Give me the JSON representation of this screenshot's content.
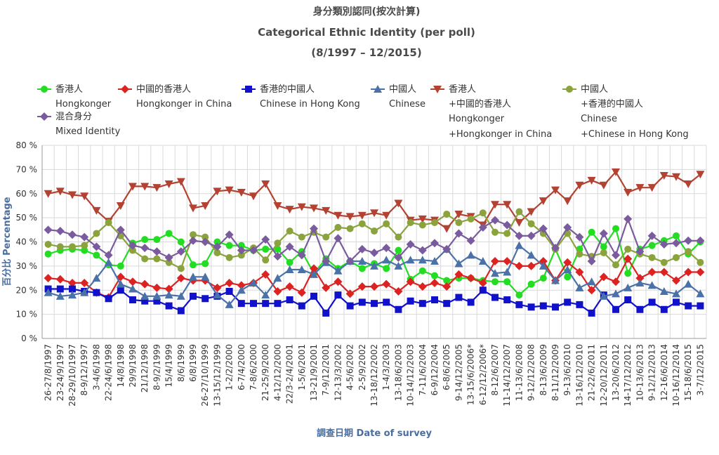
{
  "chart_data": {
    "type": "line",
    "title": "身分類別認同(按次計算)",
    "subtitle": "Categorical Ethnic Identity (per poll)",
    "period": "(8/1997 – 12/2015)",
    "ylabel": "百分比 Percentage",
    "xlabel": "調查日期 Date of survey",
    "ylim": [
      0,
      80
    ],
    "yticks": [
      "0 %",
      "10 %",
      "20 %",
      "30 %",
      "40 %",
      "50 %",
      "60 %",
      "70 %",
      "80 %"
    ],
    "grid": true,
    "legend_position": "top",
    "x_tick_labels": [
      "26-27/8/1997",
      "23-24/9/1997",
      "28-29/10/1997",
      "8-9/12/1997",
      "3-4/6/1998",
      "22-24/6/1998",
      "14/8/1998",
      "29/9/1998",
      "21/12/1998",
      "8-9/2/1999",
      "15/4/1999",
      "8/6/1999",
      "6/8/1999",
      "26-27/10/1999",
      "13-15/12/1999",
      "1-2/2/2000",
      "6-7/4/2000",
      "7-8/6/2000",
      "21-25/9/2000",
      "4-12/12/2000",
      "22/3-2/4/2001",
      "1-5/6/2001",
      "13-21/9/2001",
      "7-9/12/2001",
      "12-13/3/2002",
      "4-5/6/2002",
      "2-5/9/2002",
      "13-18/12/2002",
      "1-4/3/2003",
      "13-18/6/2003",
      "10-14/12/2003",
      "7-11/6/2004",
      "6-9/12/2004",
      "6-8/6/2005",
      "9-14/12/2005",
      "13-15/6/2006*",
      "6-12/12/2006*",
      "8-12/6/2007",
      "11-14/12/2007",
      "11-13/6/2008",
      "9-12/12/2008",
      "8-13/6/2009",
      "8-11/12/2009",
      "9-13/6/2010",
      "13-16/12/2010",
      "21-22/6/2011",
      "12-20/12/2011",
      "13-20/6/2012",
      "14-17/12/2012",
      "10-13/6/2013",
      "9-12/12/2013",
      "12-16/6/2014",
      "10-16/12/2014",
      "15-18/6/2015",
      "3-7/12/2015"
    ],
    "series": [
      {
        "name": "香港人 Hongkonger",
        "color": "#22dd22",
        "marker": "circle",
        "values": [
          35,
          36.5,
          37,
          36.5,
          34.5,
          30.5,
          30,
          39.5,
          41,
          41,
          43.5,
          40,
          30.5,
          31,
          40,
          38.5,
          38.5,
          36.5,
          37,
          37,
          31.5,
          36,
          27,
          33,
          29,
          32,
          29,
          31,
          29,
          36.5,
          24.5,
          28,
          26,
          24,
          25,
          25,
          24,
          23.5,
          23.5,
          18,
          22.5,
          25,
          37,
          25.5,
          37,
          44,
          38,
          45.5,
          27,
          37,
          38.5,
          40.5,
          42.5,
          35,
          40
        ]
      },
      {
        "name": "中國的香港人 Hongkonger in China",
        "color": "#dd2222",
        "marker": "diamond",
        "values": [
          25,
          24.5,
          23,
          23,
          19,
          17,
          25.5,
          23.5,
          22.5,
          21,
          20.5,
          25,
          24,
          24,
          21,
          23,
          22,
          23,
          26.5,
          19.5,
          21.5,
          19,
          29,
          21,
          23.5,
          18.5,
          21.5,
          21.5,
          22.5,
          19.5,
          23.5,
          21.5,
          23,
          21.5,
          26.5,
          25,
          23,
          32,
          32,
          30,
          30,
          32,
          24,
          31.5,
          27.5,
          20,
          25.5,
          23.5,
          33,
          25,
          27.5,
          27.5,
          24,
          27.5,
          27.5
        ]
      },
      {
        "name": "香港的中國人 Chinese in Hong Kong",
        "color": "#1111cc",
        "marker": "square",
        "values": [
          20.5,
          20.5,
          20.5,
          19.5,
          19,
          16.5,
          20,
          16,
          15.5,
          15.5,
          13.5,
          11.5,
          17.5,
          16.5,
          17.5,
          19.5,
          14.5,
          14.5,
          14.5,
          14.5,
          16,
          13.5,
          17.5,
          10.5,
          18,
          13.5,
          15,
          14.5,
          15,
          12,
          15.5,
          14.5,
          16,
          14.5,
          17,
          15,
          20,
          17,
          16,
          14,
          13,
          13.5,
          13,
          15,
          14,
          10.5,
          18,
          12,
          16,
          12,
          15,
          12,
          15,
          13.5,
          13.5
        ]
      },
      {
        "name": "中國人 Chinese",
        "color": "#4a72a8",
        "marker": "triangle",
        "values": [
          19,
          17.5,
          18,
          19,
          25,
          31.5,
          22.5,
          20.5,
          17.5,
          17.5,
          18,
          17.5,
          25.5,
          25.5,
          18,
          14,
          20,
          23,
          18,
          25,
          28.5,
          28.5,
          26.5,
          31.5,
          28,
          32,
          32,
          30,
          32.5,
          30,
          32.5,
          32.5,
          32,
          37,
          31,
          34.5,
          32,
          27,
          27.5,
          38.5,
          34.5,
          30,
          24,
          28.5,
          21,
          23.5,
          17.5,
          18.5,
          21,
          23,
          22,
          19.5,
          18.5,
          22.5,
          18.5
        ]
      },
      {
        "name": "香港人 + 中國的香港人 Hongkonger + Hongkonger in China",
        "color": "#b34232",
        "marker": "triangle-down",
        "values": [
          60,
          61,
          59.5,
          59,
          53,
          48.5,
          55,
          63,
          63,
          62.5,
          64,
          65,
          54,
          55,
          61,
          61.5,
          60.5,
          59,
          64,
          55,
          53.5,
          54.5,
          54,
          53,
          51,
          50.5,
          51,
          52,
          51,
          56,
          49,
          49.5,
          49,
          45.5,
          51.5,
          50.5,
          47,
          55.5,
          55.5,
          48,
          52.5,
          57,
          61.5,
          57,
          63.5,
          65.5,
          63.5,
          69,
          60.5,
          62.5,
          62.5,
          67.5,
          67,
          64,
          68
        ]
      },
      {
        "name": "中國人 + 香港的中國人 Chinese + Chinese in Hong Kong",
        "color": "#8aa33c",
        "marker": "circle",
        "values": [
          39,
          38,
          38,
          38.5,
          43.5,
          48,
          42.5,
          36.5,
          33,
          33,
          31.5,
          29,
          43,
          42,
          35.5,
          33.5,
          34.5,
          37.5,
          32.5,
          39.5,
          44.5,
          42,
          44,
          42,
          46,
          45.5,
          47.5,
          44.5,
          47.5,
          42,
          48,
          47,
          48,
          51.5,
          48,
          49.5,
          52,
          44,
          43.5,
          52.5,
          47.5,
          43.5,
          37,
          43.5,
          35,
          34,
          35.5,
          30.5,
          37,
          35,
          33.5,
          31.5,
          33.5,
          36,
          31.5
        ]
      },
      {
        "name": "混合身分 Mixed Identity",
        "color": "#7a5c9e",
        "marker": "diamond",
        "values": [
          45,
          44.5,
          43,
          42,
          38,
          34.5,
          45,
          38.5,
          37.5,
          36,
          33.5,
          36,
          40.5,
          40,
          38,
          43,
          36.5,
          36.5,
          41,
          34,
          38,
          34.5,
          45.5,
          32,
          41.5,
          32,
          37,
          35.5,
          37.5,
          33.5,
          39,
          36.5,
          39.5,
          37,
          43.5,
          40.5,
          46,
          49,
          47,
          42.5,
          42.5,
          45.5,
          37.5,
          46,
          42,
          32,
          43.5,
          34.5,
          49.5,
          36,
          42.5,
          39,
          39.5,
          40.5,
          40.5
        ]
      }
    ]
  },
  "legend": [
    {
      "zh": "香港人",
      "en": "Hongkonger"
    },
    {
      "zh": "中國的香港人",
      "en": "Hongkonger in China"
    },
    {
      "zh": "香港的中國人",
      "en": "Chinese in Hong Kong"
    },
    {
      "zh": "中國人",
      "en": "Chinese"
    },
    {
      "zh": "香港人",
      "en1": "+中國的香港人",
      "en2": "Hongkonger",
      "en3": "+Hongkonger in China"
    },
    {
      "zh": "中國人",
      "en1": "+香港的中國人",
      "en2": "Chinese",
      "en3": "+Chinese in Hong Kong"
    },
    {
      "zh": "混合身分",
      "en": "Mixed Identity"
    }
  ]
}
